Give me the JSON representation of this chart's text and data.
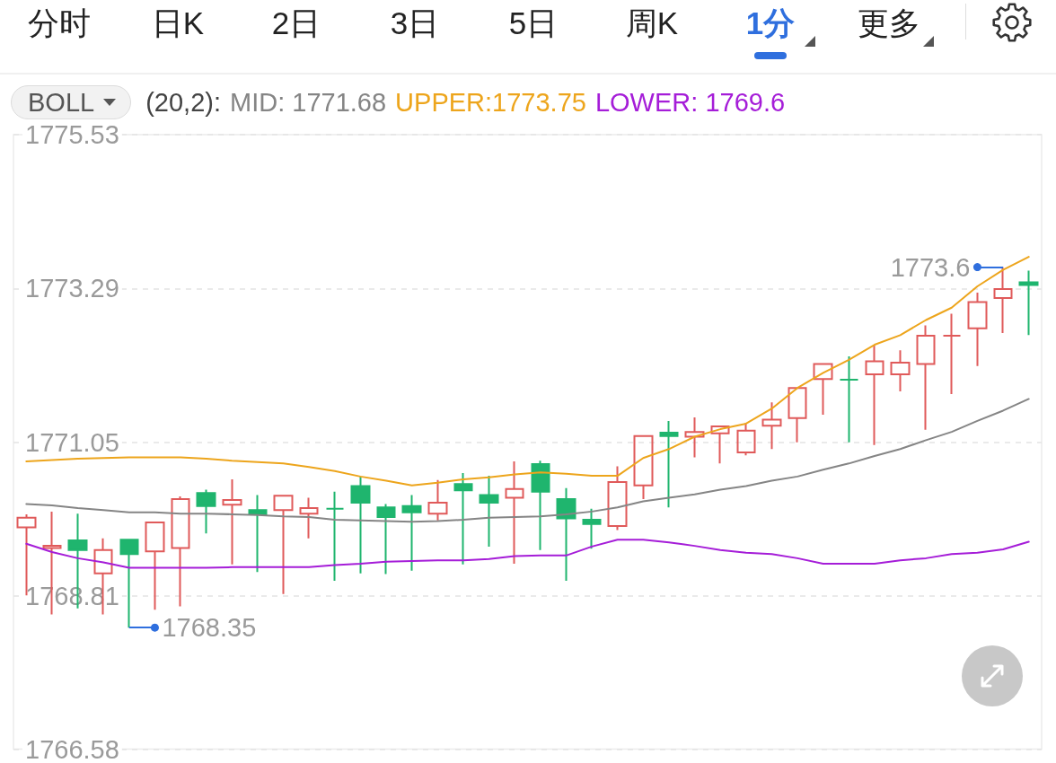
{
  "chart_data": {
    "type": "candlestick",
    "categories": [
      null,
      null,
      null,
      null,
      null,
      null,
      null,
      null,
      null,
      null,
      null,
      null,
      null,
      null,
      null,
      null,
      null,
      null,
      null,
      null,
      null,
      null,
      null,
      null,
      null,
      null,
      null,
      null,
      null,
      null,
      null,
      null,
      null,
      null,
      null,
      null,
      null,
      null,
      null,
      null
    ],
    "ohlc": [
      [
        1769.81,
        1770.0,
        1768.82,
        1769.95
      ],
      [
        1769.51,
        1770.04,
        1768.54,
        1769.54
      ],
      [
        1769.62,
        1770.01,
        1768.63,
        1769.48
      ],
      [
        1769.14,
        1769.65,
        1768.54,
        1769.48
      ],
      [
        1769.63,
        1769.63,
        1768.35,
        1769.42
      ],
      [
        1769.46,
        1769.88,
        1768.61,
        1769.88
      ],
      [
        1769.51,
        1770.26,
        1768.66,
        1770.22
      ],
      [
        1770.31,
        1770.36,
        1769.72,
        1770.12
      ],
      [
        1770.14,
        1770.51,
        1769.27,
        1770.21
      ],
      [
        1770.06,
        1770.28,
        1769.16,
        1770.0
      ],
      [
        1770.06,
        1770.27,
        1768.84,
        1770.27
      ],
      [
        1770.01,
        1770.24,
        1769.65,
        1770.09
      ],
      [
        1770.08,
        1770.33,
        1769.03,
        1770.08
      ],
      [
        1770.41,
        1770.55,
        1769.14,
        1770.17
      ],
      [
        1770.1,
        1770.15,
        1769.13,
        1769.96
      ],
      [
        1770.12,
        1770.28,
        1769.18,
        1770.03
      ],
      [
        1770.01,
        1770.5,
        1769.91,
        1770.17
      ],
      [
        1770.44,
        1770.6,
        1769.27,
        1770.35
      ],
      [
        1770.28,
        1770.56,
        1769.53,
        1770.17
      ],
      [
        1770.24,
        1770.77,
        1769.28,
        1770.37
      ],
      [
        1770.73,
        1770.78,
        1769.48,
        1770.33
      ],
      [
        1770.22,
        1770.38,
        1769.03,
        1769.94
      ],
      [
        1769.92,
        1770.08,
        1769.5,
        1769.86
      ],
      [
        1769.83,
        1770.7,
        1769.77,
        1770.47
      ],
      [
        1770.42,
        1771.14,
        1770.22,
        1771.14
      ],
      [
        1771.19,
        1771.36,
        1770.1,
        1771.14
      ],
      [
        1771.13,
        1771.41,
        1770.83,
        1771.2
      ],
      [
        1771.18,
        1771.28,
        1770.74,
        1771.28
      ],
      [
        1770.9,
        1771.33,
        1770.86,
        1771.22
      ],
      [
        1771.29,
        1771.63,
        1770.95,
        1771.38
      ],
      [
        1771.4,
        1771.84,
        1771.05,
        1771.84
      ],
      [
        1771.97,
        1772.19,
        1771.45,
        1772.19
      ],
      [
        1771.96,
        1772.3,
        1771.05,
        1771.96
      ],
      [
        1772.04,
        1772.47,
        1771.01,
        1772.23
      ],
      [
        1772.04,
        1772.39,
        1771.79,
        1772.21
      ],
      [
        1772.19,
        1772.75,
        1771.23,
        1772.6
      ],
      [
        1772.6,
        1772.92,
        1771.75,
        1772.6
      ],
      [
        1772.71,
        1773.23,
        1772.16,
        1773.09
      ],
      [
        1773.15,
        1773.6,
        1772.64,
        1773.28
      ],
      [
        1773.38,
        1773.55,
        1772.61,
        1773.34
      ]
    ],
    "colors": [
      "#e05a5a",
      "#e05a5a",
      "#1fb56e",
      "#e05a5a",
      "#1fb56e",
      "#e05a5a",
      "#e05a5a",
      "#1fb56e",
      "#e05a5a",
      "#1fb56e",
      "#e05a5a",
      "#e05a5a",
      "#1fb56e",
      "#1fb56e",
      "#1fb56e",
      "#1fb56e",
      "#e05a5a",
      "#1fb56e",
      "#1fb56e",
      "#e05a5a",
      "#1fb56e",
      "#1fb56e",
      "#1fb56e",
      "#e05a5a",
      "#e05a5a",
      "#1fb56e",
      "#e05a5a",
      "#e05a5a",
      "#e05a5a",
      "#e05a5a",
      "#e05a5a",
      "#e05a5a",
      "#1fb56e",
      "#e05a5a",
      "#e05a5a",
      "#e05a5a",
      "#e05a5a",
      "#e05a5a",
      "#e05a5a",
      "#1fb56e"
    ],
    "series": [
      {
        "name": "MID: 1771.68",
        "type": "line",
        "color": "#858585",
        "values": [
          1770.15,
          1770.13,
          1770.09,
          1770.06,
          1770.03,
          1770.03,
          1770.01,
          1770.01,
          1770.0,
          1769.99,
          1769.97,
          1769.96,
          1769.92,
          1769.91,
          1769.9,
          1769.89,
          1769.9,
          1769.92,
          1769.95,
          1769.96,
          1769.97,
          1770.0,
          1770.04,
          1770.1,
          1770.19,
          1770.24,
          1770.29,
          1770.36,
          1770.41,
          1770.49,
          1770.55,
          1770.65,
          1770.74,
          1770.85,
          1770.95,
          1771.08,
          1771.2,
          1771.36,
          1771.51,
          1771.68
        ]
      },
      {
        "name": "UPPER:1773.75",
        "type": "line",
        "color": "#eda51c",
        "values": [
          1770.77,
          1770.79,
          1770.81,
          1770.82,
          1770.83,
          1770.83,
          1770.83,
          1770.81,
          1770.78,
          1770.76,
          1770.74,
          1770.69,
          1770.63,
          1770.55,
          1770.49,
          1770.42,
          1770.46,
          1770.51,
          1770.54,
          1770.58,
          1770.61,
          1770.59,
          1770.56,
          1770.56,
          1770.82,
          1770.95,
          1771.13,
          1771.24,
          1771.32,
          1771.54,
          1771.84,
          1772.06,
          1772.25,
          1772.47,
          1772.61,
          1772.83,
          1773.01,
          1773.32,
          1773.56,
          1773.75
        ]
      },
      {
        "name": "LOWER: 1769.6",
        "type": "line",
        "color": "#a51dd8",
        "values": [
          1769.57,
          1769.45,
          1769.36,
          1769.3,
          1769.22,
          1769.22,
          1769.22,
          1769.22,
          1769.23,
          1769.23,
          1769.23,
          1769.23,
          1769.26,
          1769.28,
          1769.31,
          1769.32,
          1769.33,
          1769.33,
          1769.35,
          1769.39,
          1769.4,
          1769.4,
          1769.53,
          1769.63,
          1769.63,
          1769.59,
          1769.54,
          1769.48,
          1769.44,
          1769.42,
          1769.36,
          1769.28,
          1769.28,
          1769.28,
          1769.33,
          1769.36,
          1769.42,
          1769.44,
          1769.49,
          1769.6
        ]
      }
    ],
    "ylim": [
      1766.58,
      1775.53
    ],
    "yticks": [
      1766.58,
      1768.81,
      1771.05,
      1773.29,
      1775.53
    ],
    "grid": "y",
    "legend": "top left",
    "marker": "none",
    "tick_labels": "y",
    "annotations": [
      "分时",
      "日K",
      "2日",
      "3日",
      "5日",
      "周K",
      "1分",
      "更多",
      "BOLL",
      "(20,2):",
      "1773.6",
      "1768.35"
    ]
  }
}
